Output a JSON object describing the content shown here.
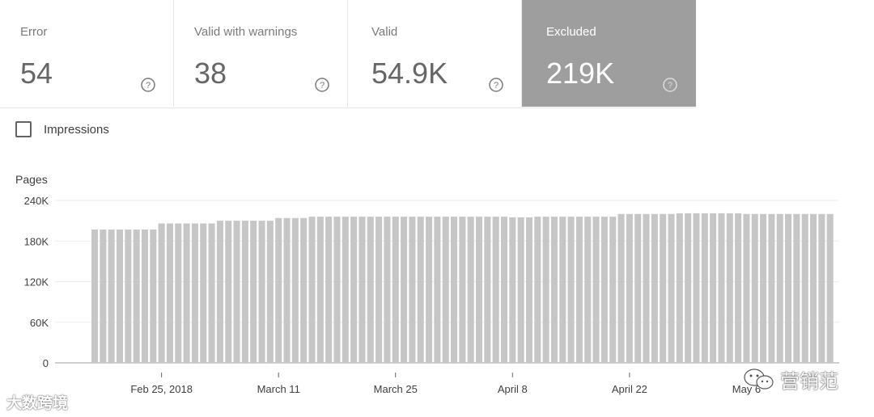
{
  "cards": [
    {
      "title": "Error",
      "value": "54",
      "selected": false
    },
    {
      "title": "Valid with warnings",
      "value": "38",
      "selected": false
    },
    {
      "title": "Valid",
      "value": "54.9K",
      "selected": false
    },
    {
      "title": "Excluded",
      "value": "219K",
      "selected": true
    }
  ],
  "impressions_label": "Impressions",
  "impressions_checked": false,
  "watermarks": {
    "left": "大数跨境",
    "right": "营销范"
  },
  "chart_data": {
    "type": "bar",
    "ylabel": "Pages",
    "ylim": [
      0,
      240000
    ],
    "yticks": [
      "0",
      "60K",
      "120K",
      "180K",
      "240K"
    ],
    "ytick_values": [
      0,
      60000,
      120000,
      180000,
      240000
    ],
    "xtick_labels": [
      "Feb 25, 2018",
      "March 11",
      "March 25",
      "April 8",
      "April 22",
      "May 6"
    ],
    "xtick_indices": [
      8,
      22,
      36,
      50,
      64,
      78
    ],
    "bar_color": "#c6c6c6",
    "grid": true,
    "values": [
      197000,
      197000,
      197000,
      197000,
      197000,
      197000,
      197000,
      197000,
      206000,
      206000,
      206000,
      206000,
      206000,
      206000,
      206000,
      210000,
      210000,
      210000,
      210000,
      210000,
      210000,
      210000,
      214000,
      214000,
      214000,
      214000,
      216000,
      216000,
      216000,
      216000,
      216000,
      216000,
      216000,
      216000,
      216000,
      216000,
      216000,
      216000,
      216000,
      216000,
      216000,
      216000,
      216000,
      216000,
      216000,
      216000,
      216000,
      216000,
      216000,
      216000,
      215000,
      215000,
      215000,
      216000,
      216000,
      216000,
      216000,
      216000,
      216000,
      216000,
      216000,
      216000,
      216000,
      220000,
      220000,
      220000,
      220000,
      220000,
      220000,
      220000,
      221000,
      221000,
      221000,
      221000,
      221000,
      221000,
      221000,
      221000,
      220000,
      220000,
      220000,
      220000,
      220000,
      220000,
      220000,
      220000,
      220000,
      220000,
      220000
    ]
  }
}
